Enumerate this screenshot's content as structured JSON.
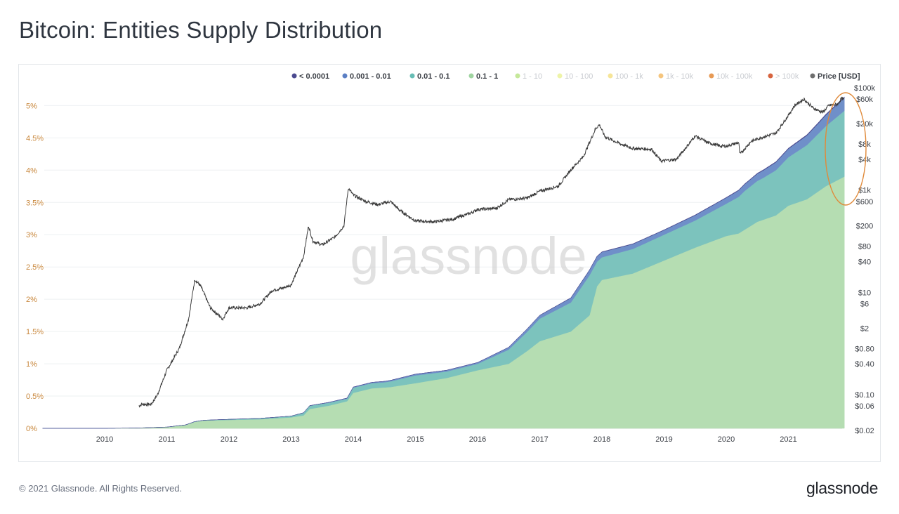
{
  "header": {
    "title": "Bitcoin: Entities Supply Distribution"
  },
  "footer": {
    "copyright": "© 2021 Glassnode. All Rights Reserved.",
    "brand": "glassnode"
  },
  "watermark": "glassnode",
  "chart_data": {
    "type": "area",
    "title": "Bitcoin: Entities Supply Distribution",
    "stacked": true,
    "x_ticks": [
      "2010",
      "2011",
      "2012",
      "2013",
      "2014",
      "2015",
      "2016",
      "2017",
      "2018",
      "2019",
      "2020",
      "2021"
    ],
    "y_left": {
      "ticks": [
        "0%",
        "0.5%",
        "1%",
        "1.5%",
        "2%",
        "2.5%",
        "3%",
        "3.5%",
        "4%",
        "4.5%",
        "5%"
      ],
      "range": [
        0,
        5.2
      ],
      "color": "#c8873c"
    },
    "y_right": {
      "scale": "log",
      "range": [
        0.02,
        100000
      ],
      "ticks": [
        "$100k",
        "$60k",
        "$20k",
        "$8k",
        "$4k",
        "$1k",
        "$600",
        "$200",
        "$80",
        "$40",
        "$10",
        "$6",
        "$2",
        "$0.80",
        "$0.40",
        "$0.10",
        "$0.06",
        "$0.02"
      ]
    },
    "legend": {
      "position": "top-right",
      "items": [
        {
          "label": "< 0.0001",
          "color": "#4b4a8f",
          "active": true
        },
        {
          "label": "0.001 - 0.01",
          "color": "#5b7fc4",
          "active": true
        },
        {
          "label": "0.01 - 0.1",
          "color": "#67bdb5",
          "active": true
        },
        {
          "label": "0.1 - 1",
          "color": "#9fd4a0",
          "active": true
        },
        {
          "label": "1 - 10",
          "color": "#c5e89a",
          "active": false
        },
        {
          "label": "10 - 100",
          "color": "#eef4a8",
          "active": false
        },
        {
          "label": "100 - 1k",
          "color": "#f6e598",
          "active": false
        },
        {
          "label": "1k - 10k",
          "color": "#f5c57e",
          "active": false
        },
        {
          "label": "10k - 100k",
          "color": "#e79a55",
          "active": false
        },
        {
          "label": "> 100k",
          "color": "#d7643f",
          "active": false
        },
        {
          "label": "Price [USD]",
          "color": "#6e6e6e",
          "active": true
        }
      ]
    },
    "series": [
      {
        "name": "0.1 - 1",
        "unit": "%",
        "color": "#b5ddb2",
        "points": [
          [
            2010.0,
            0
          ],
          [
            2010.5,
            0.005
          ],
          [
            2011.0,
            0.02
          ],
          [
            2011.3,
            0.05
          ],
          [
            2011.45,
            0.1
          ],
          [
            2011.6,
            0.12
          ],
          [
            2012.0,
            0.13
          ],
          [
            2012.5,
            0.14
          ],
          [
            2013.0,
            0.17
          ],
          [
            2013.2,
            0.2
          ],
          [
            2013.3,
            0.3
          ],
          [
            2013.6,
            0.35
          ],
          [
            2013.9,
            0.42
          ],
          [
            2014.0,
            0.55
          ],
          [
            2014.3,
            0.62
          ],
          [
            2014.6,
            0.64
          ],
          [
            2015.0,
            0.7
          ],
          [
            2015.5,
            0.78
          ],
          [
            2016.0,
            0.9
          ],
          [
            2016.5,
            1.0
          ],
          [
            2016.8,
            1.2
          ],
          [
            2017.0,
            1.35
          ],
          [
            2017.5,
            1.5
          ],
          [
            2017.8,
            1.75
          ],
          [
            2017.92,
            2.2
          ],
          [
            2018.0,
            2.3
          ],
          [
            2018.5,
            2.4
          ],
          [
            2019.0,
            2.6
          ],
          [
            2019.5,
            2.8
          ],
          [
            2020.0,
            2.98
          ],
          [
            2020.2,
            3.02
          ],
          [
            2020.5,
            3.2
          ],
          [
            2020.8,
            3.3
          ],
          [
            2021.0,
            3.45
          ],
          [
            2021.3,
            3.55
          ],
          [
            2021.6,
            3.75
          ],
          [
            2021.9,
            3.9
          ]
        ]
      },
      {
        "name": "0.01 - 0.1",
        "unit": "%",
        "color": "#7cc3bd",
        "points": [
          [
            2010.0,
            0
          ],
          [
            2011.0,
            0
          ],
          [
            2013.0,
            0.02
          ],
          [
            2013.3,
            0.05
          ],
          [
            2013.9,
            0.04
          ],
          [
            2014.0,
            0.08
          ],
          [
            2014.5,
            0.08
          ],
          [
            2015.0,
            0.12
          ],
          [
            2015.5,
            0.1
          ],
          [
            2016.0,
            0.1
          ],
          [
            2016.5,
            0.22
          ],
          [
            2017.0,
            0.35
          ],
          [
            2017.5,
            0.45
          ],
          [
            2017.8,
            0.62
          ],
          [
            2017.92,
            0.38
          ],
          [
            2018.0,
            0.35
          ],
          [
            2018.5,
            0.38
          ],
          [
            2019.0,
            0.4
          ],
          [
            2019.5,
            0.42
          ],
          [
            2020.0,
            0.5
          ],
          [
            2020.3,
            0.6
          ],
          [
            2020.6,
            0.65
          ],
          [
            2021.0,
            0.75
          ],
          [
            2021.5,
            0.9
          ],
          [
            2021.9,
            1.02
          ]
        ]
      },
      {
        "name": "0.001 - 0.01",
        "unit": "%",
        "color": "#6f8fc9",
        "points": [
          [
            2010.0,
            0
          ],
          [
            2013.0,
            0
          ],
          [
            2014.0,
            0.01
          ],
          [
            2015.0,
            0.02
          ],
          [
            2016.0,
            0.02
          ],
          [
            2017.0,
            0.05
          ],
          [
            2017.8,
            0.08
          ],
          [
            2018.0,
            0.08
          ],
          [
            2019.0,
            0.07
          ],
          [
            2020.0,
            0.09
          ],
          [
            2021.0,
            0.13
          ],
          [
            2021.5,
            0.16
          ],
          [
            2021.9,
            0.2
          ]
        ]
      },
      {
        "name": "< 0.0001",
        "unit": "%",
        "color": "#4b4a8f",
        "points": [
          [
            2010.0,
            0
          ],
          [
            2016.0,
            0
          ],
          [
            2017.0,
            0.003
          ],
          [
            2018.0,
            0.005
          ],
          [
            2019.0,
            0.005
          ],
          [
            2020.0,
            0.007
          ],
          [
            2021.0,
            0.01
          ],
          [
            2021.9,
            0.015
          ]
        ]
      },
      {
        "name": "Price [USD]",
        "axis": "right",
        "color": "#3a3a3a",
        "points": [
          [
            2010.55,
            0.06
          ],
          [
            2010.6,
            0.065
          ],
          [
            2010.75,
            0.065
          ],
          [
            2010.85,
            0.1
          ],
          [
            2011.0,
            0.3
          ],
          [
            2011.2,
            0.8
          ],
          [
            2011.35,
            3
          ],
          [
            2011.45,
            18
          ],
          [
            2011.55,
            13
          ],
          [
            2011.7,
            5
          ],
          [
            2011.9,
            3
          ],
          [
            2012.0,
            5
          ],
          [
            2012.3,
            5
          ],
          [
            2012.5,
            6
          ],
          [
            2012.7,
            11
          ],
          [
            2012.85,
            12
          ],
          [
            2013.0,
            14
          ],
          [
            2013.2,
            50
          ],
          [
            2013.28,
            200
          ],
          [
            2013.35,
            100
          ],
          [
            2013.5,
            85
          ],
          [
            2013.7,
            120
          ],
          [
            2013.85,
            200
          ],
          [
            2013.92,
            1100
          ],
          [
            2014.0,
            800
          ],
          [
            2014.2,
            600
          ],
          [
            2014.4,
            520
          ],
          [
            2014.6,
            600
          ],
          [
            2014.75,
            400
          ],
          [
            2015.0,
            250
          ],
          [
            2015.3,
            240
          ],
          [
            2015.6,
            270
          ],
          [
            2015.9,
            360
          ],
          [
            2016.0,
            420
          ],
          [
            2016.3,
            440
          ],
          [
            2016.5,
            650
          ],
          [
            2016.8,
            700
          ],
          [
            2017.0,
            950
          ],
          [
            2017.3,
            1200
          ],
          [
            2017.5,
            2500
          ],
          [
            2017.7,
            4500
          ],
          [
            2017.9,
            16000
          ],
          [
            2017.96,
            19000
          ],
          [
            2018.05,
            11000
          ],
          [
            2018.3,
            8000
          ],
          [
            2018.5,
            6500
          ],
          [
            2018.8,
            6300
          ],
          [
            2018.95,
            3700
          ],
          [
            2019.2,
            4000
          ],
          [
            2019.4,
            8000
          ],
          [
            2019.5,
            11500
          ],
          [
            2019.7,
            8500
          ],
          [
            2019.9,
            7300
          ],
          [
            2020.0,
            7200
          ],
          [
            2020.2,
            8500
          ],
          [
            2020.22,
            5000
          ],
          [
            2020.4,
            9000
          ],
          [
            2020.6,
            11000
          ],
          [
            2020.8,
            13000
          ],
          [
            2021.0,
            29000
          ],
          [
            2021.1,
            45000
          ],
          [
            2021.25,
            60000
          ],
          [
            2021.4,
            40000
          ],
          [
            2021.55,
            33000
          ],
          [
            2021.65,
            45000
          ],
          [
            2021.8,
            48000
          ],
          [
            2021.85,
            62000
          ],
          [
            2021.9,
            58000
          ]
        ]
      }
    ],
    "annotation": {
      "type": "ellipse",
      "color": "#e08a3a"
    }
  }
}
